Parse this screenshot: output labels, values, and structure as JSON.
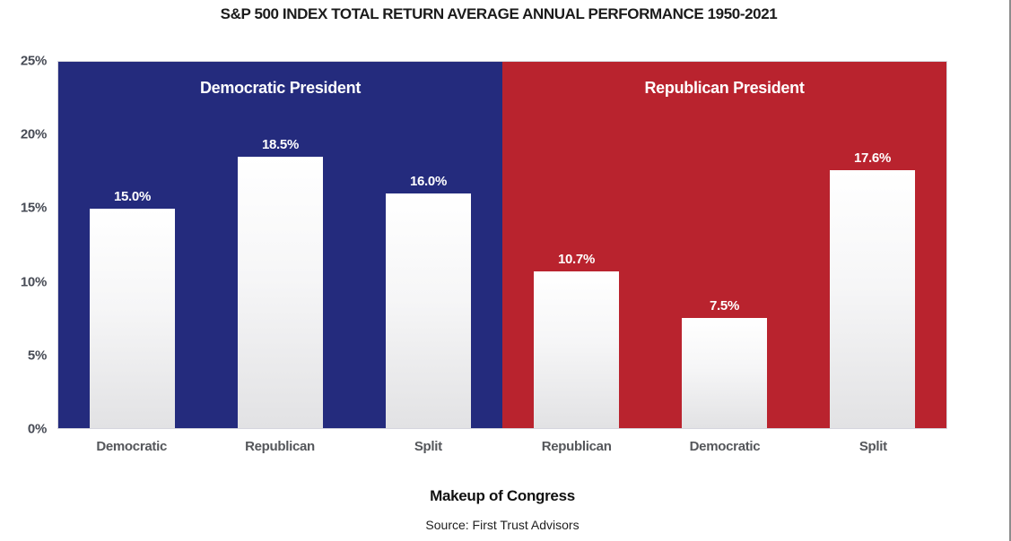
{
  "title": "S&P 500 INDEX TOTAL RETURN AVERAGE ANNUAL PERFORMANCE 1950-2021",
  "chart_data": {
    "type": "bar",
    "title": "S&P 500 INDEX TOTAL RETURN AVERAGE ANNUAL PERFORMANCE 1950-2021",
    "xlabel": "Makeup of Congress",
    "ylabel": "",
    "ylim": [
      0,
      25
    ],
    "yticks": [
      "25%",
      "20%",
      "15%",
      "10%",
      "5%",
      "0%"
    ],
    "grid": false,
    "legend_position": "none",
    "groups": [
      {
        "label": "Democratic President",
        "panel_color": "#242B7D",
        "categories": [
          "Democratic",
          "Republican",
          "Split"
        ],
        "values": [
          15.0,
          18.5,
          16.0
        ],
        "value_labels": [
          "15.0%",
          "18.5%",
          "16.0%"
        ]
      },
      {
        "label": "Republican President",
        "panel_color": "#B9232E",
        "categories": [
          "Republican",
          "Democratic",
          "Split"
        ],
        "values": [
          10.7,
          7.5,
          17.6
        ],
        "value_labels": [
          "10.7%",
          "7.5%",
          "17.6%"
        ]
      }
    ],
    "bar_color": "#F2F2F3",
    "source": "Source: First Trust Advisors"
  }
}
